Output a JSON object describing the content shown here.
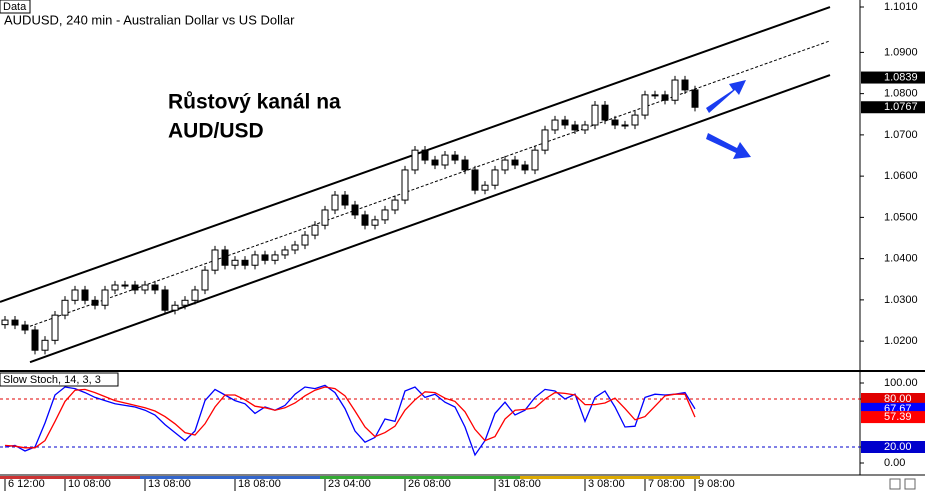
{
  "chart_data": [
    {
      "type": "candlestick",
      "panel_label": "Data",
      "title": "AUDUSD, 240 min - Australian Dollar vs US Dollar",
      "annotation": [
        "Růstový kanál na",
        "AUD/USD"
      ],
      "up_color": "#ffffff",
      "down_color": "#000000",
      "categories": [
        "6 12:00",
        null,
        null,
        null,
        null,
        null,
        "10 08:00",
        null,
        null,
        null,
        null,
        null,
        null,
        null,
        "13 08:00",
        null,
        null,
        null,
        null,
        null,
        null,
        null,
        null,
        "18 08:00",
        null,
        null,
        null,
        null,
        null,
        null,
        null,
        null,
        "23 04:00",
        null,
        null,
        null,
        null,
        null,
        null,
        null,
        "26 08:00",
        null,
        null,
        null,
        null,
        null,
        null,
        null,
        null,
        "31 08:00",
        null,
        null,
        null,
        null,
        null,
        null,
        null,
        null,
        "3 08:00",
        null,
        null,
        null,
        null,
        null,
        "7 08:00",
        null,
        null,
        null,
        null,
        "9 08:00"
      ],
      "open": [
        1.024,
        1.0251,
        1.0239,
        1.0227,
        1.0178,
        1.0202,
        1.0263,
        1.0299,
        1.0324,
        1.0299,
        1.0287,
        1.0324,
        1.0336,
        1.0336,
        1.0324,
        1.0336,
        1.0324,
        1.0275,
        1.0287,
        1.0299,
        1.0324,
        1.0372,
        1.0421,
        1.0384,
        1.0396,
        1.0384,
        1.0409,
        1.0396,
        1.0409,
        1.0421,
        1.0433,
        1.0457,
        1.0481,
        1.0518,
        1.0554,
        1.053,
        1.0506,
        1.0481,
        1.0494,
        1.0518,
        1.0542,
        1.0615,
        1.0663,
        1.0639,
        1.0627,
        1.0651,
        1.0639,
        1.0615,
        1.0566,
        1.0578,
        1.0615,
        1.0639,
        1.0627,
        1.0615,
        1.0663,
        1.0712,
        1.0736,
        1.0724,
        1.0712,
        1.0724,
        1.0772,
        1.0736,
        1.0724,
        1.0724,
        1.0748,
        1.0797,
        1.0797,
        1.0784,
        1.0833,
        1.0809
      ],
      "high": [
        1.0261,
        1.0261,
        1.0249,
        1.0237,
        1.0212,
        1.0273,
        1.0309,
        1.0334,
        1.0334,
        1.0309,
        1.0334,
        1.0346,
        1.0346,
        1.0346,
        1.0346,
        1.0346,
        1.0334,
        1.0297,
        1.0309,
        1.0334,
        1.0382,
        1.0431,
        1.0431,
        1.0406,
        1.0406,
        1.0419,
        1.0419,
        1.0419,
        1.0431,
        1.0443,
        1.0467,
        1.0491,
        1.0528,
        1.0564,
        1.0564,
        1.054,
        1.0516,
        1.0504,
        1.0528,
        1.0552,
        1.0625,
        1.0673,
        1.0673,
        1.0649,
        1.0661,
        1.0661,
        1.0649,
        1.0625,
        1.0588,
        1.0625,
        1.0649,
        1.0649,
        1.0637,
        1.0673,
        1.0722,
        1.0746,
        1.0746,
        1.0734,
        1.0734,
        1.0782,
        1.0782,
        1.0746,
        1.0734,
        1.0758,
        1.0807,
        1.0807,
        1.0807,
        1.0843,
        1.0843,
        1.0819
      ],
      "low": [
        1.023,
        1.0229,
        1.0217,
        1.0168,
        1.0168,
        1.0192,
        1.0253,
        1.0289,
        1.0289,
        1.0277,
        1.0277,
        1.0314,
        1.0326,
        1.0314,
        1.0314,
        1.0314,
        1.0265,
        1.0265,
        1.0277,
        1.0289,
        1.0314,
        1.0362,
        1.0374,
        1.0374,
        1.0374,
        1.0374,
        1.0386,
        1.0386,
        1.0399,
        1.0411,
        1.0423,
        1.0447,
        1.0471,
        1.0508,
        1.052,
        1.0496,
        1.0471,
        1.0471,
        1.0484,
        1.0508,
        1.0532,
        1.0605,
        1.0629,
        1.0617,
        1.0617,
        1.0629,
        1.0605,
        1.0556,
        1.0556,
        1.0568,
        1.0605,
        1.0617,
        1.0605,
        1.0605,
        1.0653,
        1.0702,
        1.0714,
        1.0702,
        1.0702,
        1.0714,
        1.0726,
        1.0714,
        1.0714,
        1.0714,
        1.0738,
        1.0787,
        1.0774,
        1.0774,
        1.0799,
        1.0757
      ],
      "close": [
        1.0251,
        1.0239,
        1.0227,
        1.0178,
        1.0202,
        1.0263,
        1.0299,
        1.0324,
        1.0299,
        1.0287,
        1.0324,
        1.0336,
        1.0336,
        1.0324,
        1.0336,
        1.0324,
        1.0275,
        1.0287,
        1.0299,
        1.0324,
        1.0372,
        1.0421,
        1.0384,
        1.0396,
        1.0384,
        1.0409,
        1.0396,
        1.0409,
        1.0421,
        1.0433,
        1.0457,
        1.0481,
        1.0518,
        1.0554,
        1.053,
        1.0506,
        1.0481,
        1.0494,
        1.0518,
        1.0542,
        1.0615,
        1.0663,
        1.0639,
        1.0627,
        1.0651,
        1.0639,
        1.0615,
        1.0566,
        1.0578,
        1.0615,
        1.0639,
        1.0627,
        1.0615,
        1.0663,
        1.0712,
        1.0736,
        1.0724,
        1.0712,
        1.0724,
        1.0772,
        1.0736,
        1.0724,
        1.0724,
        1.0748,
        1.0797,
        1.0797,
        1.0784,
        1.0833,
        1.0809,
        1.0767
      ],
      "channel": {
        "upper": {
          "x": [
            -0.5,
            82.5
          ],
          "y": [
            1.0295,
            1.101
          ]
        },
        "middle": {
          "x": [
            2.5,
            82.5
          ],
          "y": [
            1.0236,
            1.0928
          ]
        },
        "lower": {
          "x": [
            2.5,
            82.5
          ],
          "y": [
            1.0149,
            1.0845
          ]
        }
      },
      "xlim": [
        -0.5,
        85.5
      ],
      "ylim": [
        1.013,
        1.1027
      ],
      "yticks": [
        {
          "value": 1.101,
          "label": "1.1010"
        },
        {
          "value": 1.09,
          "label": "1.0900"
        },
        {
          "value": 1.08,
          "label": "1.0800"
        },
        {
          "value": 1.07,
          "label": "1.0700"
        },
        {
          "value": 1.06,
          "label": "1.0600"
        },
        {
          "value": 1.05,
          "label": "1.0500"
        },
        {
          "value": 1.04,
          "label": "1.0400"
        },
        {
          "value": 1.03,
          "label": "1.0300"
        },
        {
          "value": 1.02,
          "label": "1.0200"
        }
      ],
      "price_tags": [
        {
          "value": 1.0839,
          "label": "1.0839"
        },
        {
          "value": 1.0767,
          "label": "1.0767"
        }
      ],
      "grid": false
    },
    {
      "type": "line",
      "title": "Slow Stoch, 14, 3, 3",
      "series": [
        {
          "color": "#0000ff",
          "values": [
            20,
            22,
            15,
            20,
            50,
            85,
            95,
            93,
            88,
            82,
            78,
            74,
            72,
            70,
            66,
            60,
            48,
            38,
            28,
            40,
            78,
            92,
            85,
            78,
            74,
            62,
            70,
            66,
            72,
            86,
            95,
            93,
            97,
            88,
            68,
            40,
            26,
            32,
            55,
            52,
            90,
            95,
            82,
            86,
            76,
            70,
            45,
            10,
            28,
            62,
            76,
            60,
            66,
            82,
            92,
            90,
            80,
            86,
            52,
            82,
            90,
            70,
            45,
            46,
            82,
            86,
            85,
            86,
            88,
            67.67
          ]
        },
        {
          "color": "#ff0000",
          "values": [
            22,
            21,
            19,
            19,
            28,
            52,
            77,
            91,
            92,
            88,
            83,
            78,
            75,
            72,
            69,
            65,
            58,
            49,
            38,
            35,
            49,
            70,
            85,
            85,
            79,
            71,
            69,
            66,
            69,
            75,
            84,
            91,
            95,
            93,
            84,
            65,
            45,
            33,
            38,
            46,
            66,
            79,
            89,
            88,
            81,
            77,
            64,
            42,
            28,
            33,
            55,
            66,
            67,
            69,
            80,
            88,
            87,
            85,
            73,
            73,
            75,
            81,
            68,
            54,
            58,
            71,
            84,
            86,
            86,
            57.39
          ]
        }
      ],
      "levels": [
        {
          "value": 80,
          "color": "#e00000"
        },
        {
          "value": 20,
          "color": "#0000cc"
        }
      ],
      "ylim": [
        -15,
        113.75
      ],
      "yticks": [
        {
          "value": 100,
          "label": "100.00"
        },
        {
          "value": 80,
          "label": "80.00"
        },
        {
          "value": 20,
          "label": "20.00"
        },
        {
          "value": 0,
          "label": "0.00"
        }
      ]
    }
  ]
}
